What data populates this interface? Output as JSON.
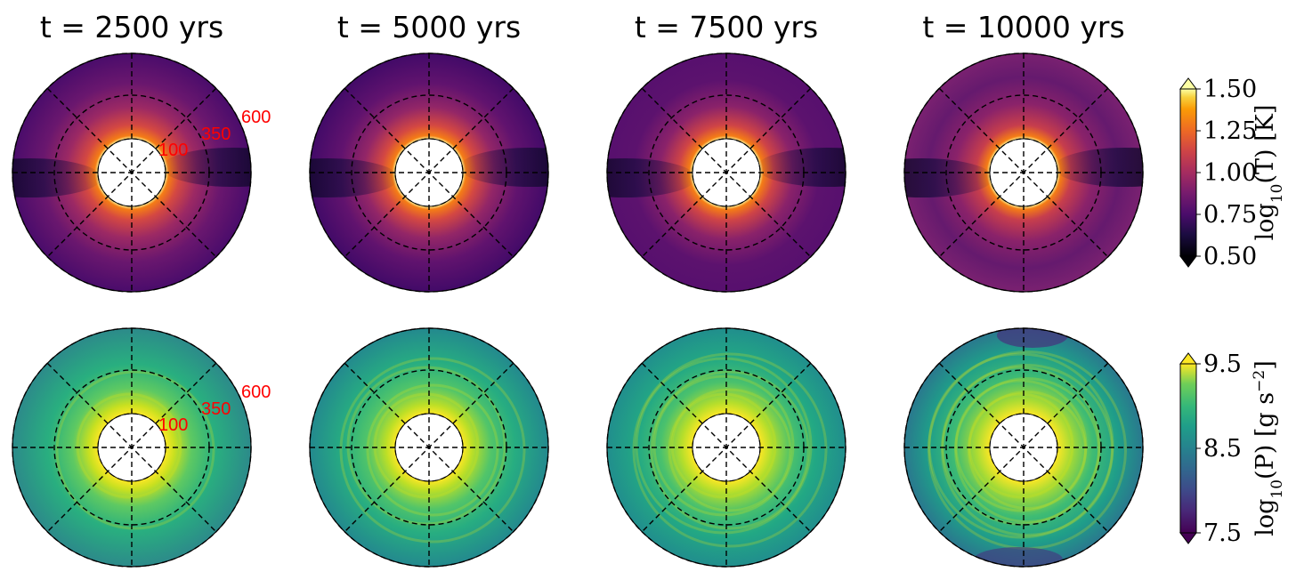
{
  "chart_data": {
    "type": "heatmap",
    "projection": "polar",
    "columns": [
      {
        "title": "t = 2500 yrs",
        "time_yrs": 2500
      },
      {
        "title": "t = 5000 yrs",
        "time_yrs": 5000
      },
      {
        "title": "t = 7500 yrs",
        "time_yrs": 7500
      },
      {
        "title": "t = 10000 yrs",
        "time_yrs": 10000
      }
    ],
    "rows": [
      {
        "quantity": "temperature",
        "colormap": "inferno",
        "colorbar": {
          "label": "log10(T) [K]",
          "label_parts": {
            "prefix": "log",
            "sub": "10",
            "body": "(T) [K]"
          },
          "range": [
            0.5,
            1.5
          ],
          "ticks": [
            "1.50",
            "1.25",
            "1.00",
            "0.75",
            "0.50"
          ],
          "tick_values": [
            1.5,
            1.25,
            1.0,
            0.75,
            0.5
          ],
          "extend": "both"
        },
        "ring_labels": [
          "100",
          "350",
          "600"
        ],
        "ring_radii": [
          100,
          350,
          600
        ]
      },
      {
        "quantity": "pressure",
        "colormap": "viridis",
        "colorbar": {
          "label": "log10(P) [g s^-2]",
          "label_parts": {
            "prefix": "log",
            "sub": "10",
            "body": "(P) [g s",
            "sup": "−2",
            "end": "]"
          },
          "range": [
            7.5,
            9.5
          ],
          "ticks": [
            "9.5",
            "8.5",
            "7.5"
          ],
          "tick_values": [
            9.5,
            8.5,
            7.5
          ],
          "extend": "both"
        },
        "ring_labels": [
          "100",
          "350",
          "600"
        ],
        "ring_radii": [
          100,
          350,
          600
        ]
      }
    ],
    "grid": {
      "dashed_rings": true,
      "dashed_spokes_deg": [
        0,
        45,
        90,
        135
      ]
    }
  }
}
